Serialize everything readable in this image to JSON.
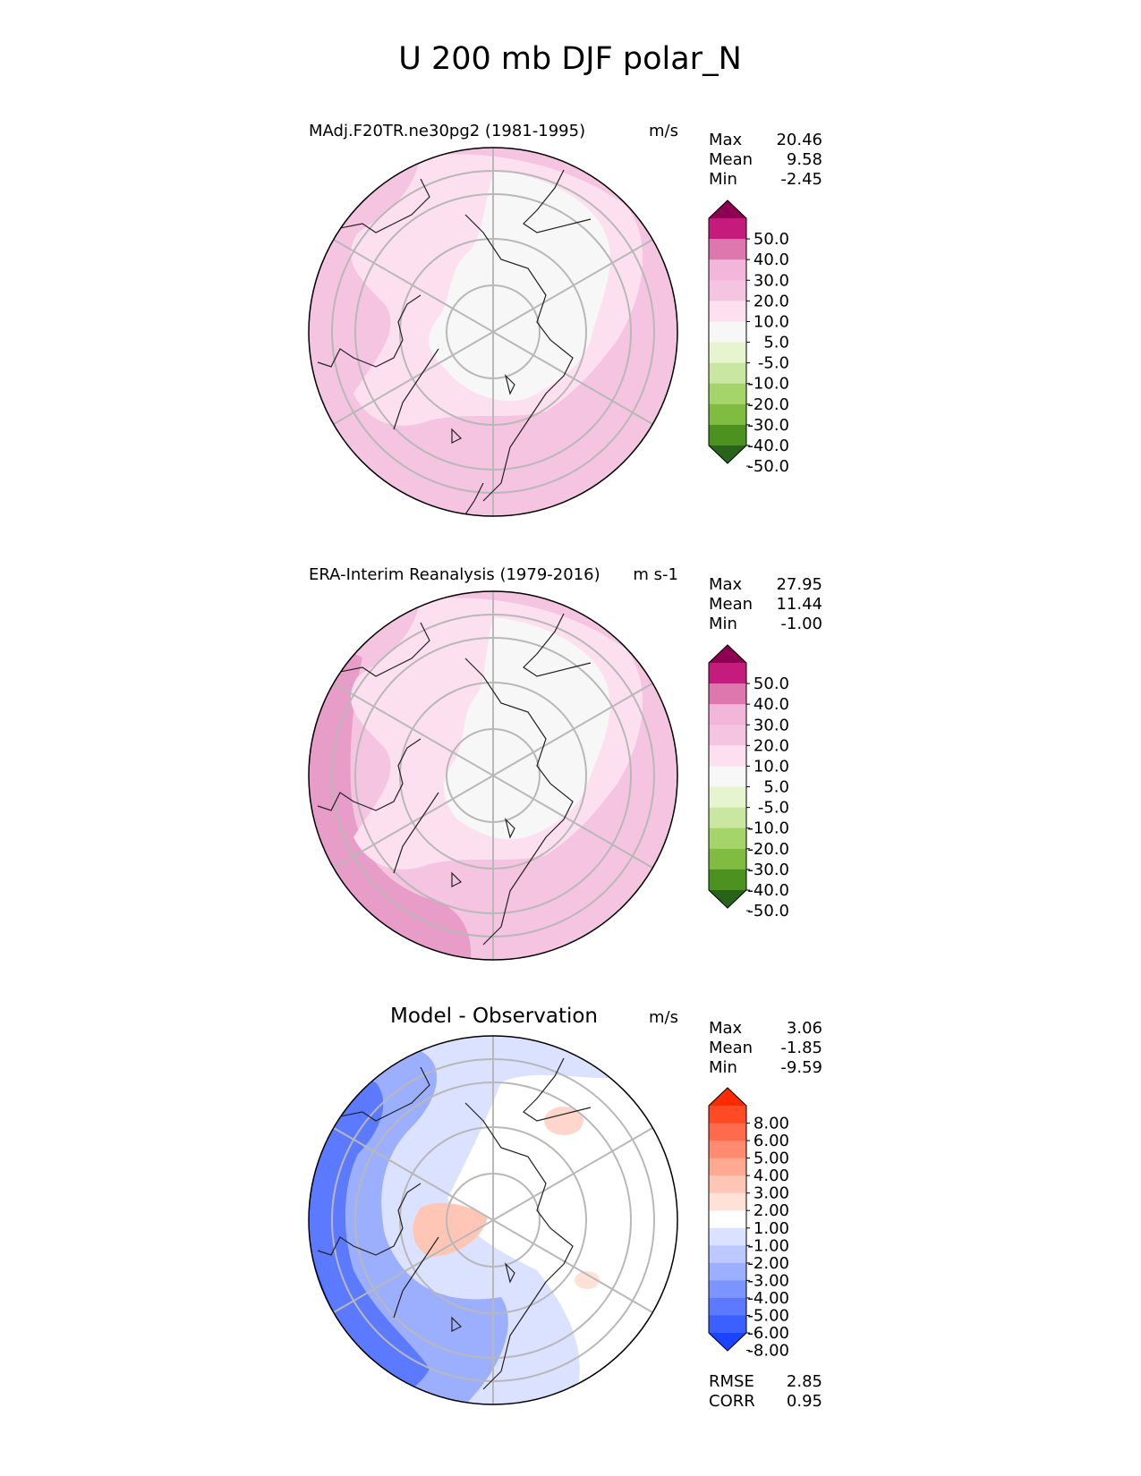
{
  "figure_title": "U 200 mb DJF polar_N",
  "chart_data": [
    {
      "type": "heatmap",
      "projection": "north polar stereographic",
      "title": "MAdj.F20TR.ne30pg2 (1981-1995)",
      "units": "m/s",
      "stats": [
        {
          "label": "Max",
          "value": "20.46"
        },
        {
          "label": "Mean",
          "value": "9.58"
        },
        {
          "label": "Min",
          "value": "-2.45"
        }
      ],
      "colorbar": {
        "labels": [
          "50.0",
          "40.0",
          "30.0",
          "20.0",
          "10.0",
          "5.0",
          "-5.0",
          "-10.0",
          "-20.0",
          "-30.0",
          "-40.0",
          "-50.0"
        ],
        "colors": [
          "#8e0152",
          "#c51b7d",
          "#de77ae",
          "#f1b6da",
          "#f4c4e0",
          "#fde0ef",
          "#f7f7f7",
          "#e6f5d0",
          "#c9e7a0",
          "#a5d46a",
          "#7fbc41",
          "#4d9221",
          "#276419"
        ],
        "extend": "both"
      }
    },
    {
      "type": "heatmap",
      "projection": "north polar stereographic",
      "title": "ERA-Interim Reanalysis (1979-2016)",
      "units": "m s-1",
      "stats": [
        {
          "label": "Max",
          "value": "27.95"
        },
        {
          "label": "Mean",
          "value": "11.44"
        },
        {
          "label": "Min",
          "value": "-1.00"
        }
      ],
      "colorbar": {
        "labels": [
          "50.0",
          "40.0",
          "30.0",
          "20.0",
          "10.0",
          "5.0",
          "-5.0",
          "-10.0",
          "-20.0",
          "-30.0",
          "-40.0",
          "-50.0"
        ],
        "colors": [
          "#8e0152",
          "#c51b7d",
          "#de77ae",
          "#f1b6da",
          "#f4c4e0",
          "#fde0ef",
          "#f7f7f7",
          "#e6f5d0",
          "#c9e7a0",
          "#a5d46a",
          "#7fbc41",
          "#4d9221",
          "#276419"
        ],
        "extend": "both"
      }
    },
    {
      "type": "heatmap",
      "projection": "north polar stereographic",
      "title": "Model - Observation",
      "units": "m/s",
      "stats": [
        {
          "label": "Max",
          "value": "3.06"
        },
        {
          "label": "Mean",
          "value": "-1.85"
        },
        {
          "label": "Min",
          "value": "-9.59"
        }
      ],
      "metrics": [
        {
          "label": "RMSE",
          "value": "2.85"
        },
        {
          "label": "CORR",
          "value": "0.95"
        }
      ],
      "colorbar": {
        "labels": [
          "8.00",
          "6.00",
          "5.00",
          "4.00",
          "3.00",
          "2.00",
          "1.00",
          "-1.00",
          "-2.00",
          "-3.00",
          "-4.00",
          "-5.00",
          "-6.00",
          "-8.00"
        ],
        "colors": [
          "#ff2a00",
          "#ff4a26",
          "#ff6a4c",
          "#ff8a70",
          "#ffa992",
          "#ffc6b6",
          "#ffe1d8",
          "#ffffff",
          "#dbe2ff",
          "#bcc8ff",
          "#9cafff",
          "#7c94ff",
          "#5c7aff",
          "#3c5fff",
          "#1a44ff"
        ],
        "extend": "both"
      }
    }
  ]
}
